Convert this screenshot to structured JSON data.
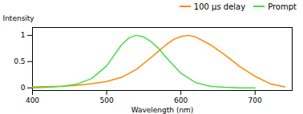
{
  "chart_data": {
    "type": "line",
    "xlabel": "Wavelength (nm)",
    "ylabel": "Intensity",
    "series": [
      {
        "name": "100 μs delay",
        "color": "#ff8800",
        "x": [
          400,
          440,
          460,
          480,
          500,
          520,
          540,
          560,
          570,
          580,
          590,
          600,
          610,
          620,
          640,
          660,
          680,
          700,
          720,
          740
        ],
        "values": [
          0.02,
          0.03,
          0.05,
          0.08,
          0.12,
          0.2,
          0.35,
          0.58,
          0.7,
          0.82,
          0.92,
          0.98,
          1.0,
          0.97,
          0.82,
          0.62,
          0.4,
          0.22,
          0.08,
          0.02
        ]
      },
      {
        "name": "Prompt",
        "color": "#44dd44",
        "x": [
          400,
          420,
          440,
          460,
          480,
          500,
          510,
          520,
          530,
          540,
          550,
          560,
          570,
          580,
          600,
          620,
          640,
          660,
          680,
          700
        ],
        "values": [
          0.0,
          0.01,
          0.03,
          0.07,
          0.18,
          0.42,
          0.62,
          0.82,
          0.95,
          1.0,
          0.97,
          0.88,
          0.75,
          0.58,
          0.28,
          0.1,
          0.03,
          0.01,
          0.0,
          0.0
        ]
      }
    ],
    "xlim": [
      400,
      750
    ],
    "xticks": [
      400,
      500,
      600,
      700
    ],
    "ylim": [
      -0.05,
      1.15
    ],
    "yticks": [
      0,
      0.5,
      1
    ],
    "legend": "upper right"
  }
}
